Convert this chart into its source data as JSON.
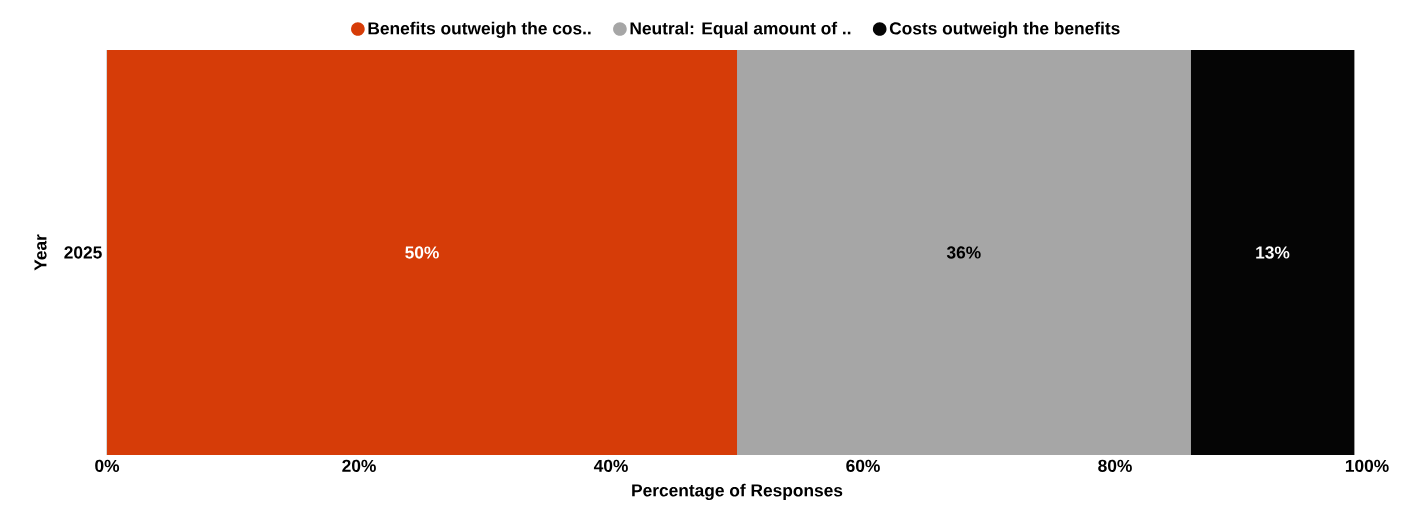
{
  "chart_data": {
    "type": "bar",
    "orientation": "horizontal",
    "stacked": true,
    "categories": [
      "2025"
    ],
    "series": [
      {
        "name": "Benefits outweigh the cos..",
        "color": "#d63c08",
        "values": [
          50
        ],
        "value_labels": [
          "50%"
        ]
      },
      {
        "name": "Neutral: Equal amount of ..",
        "color": "#a6a6a6",
        "values": [
          36
        ],
        "value_labels": [
          "36%"
        ]
      },
      {
        "name": "Costs outweigh the benefits",
        "color": "#050505",
        "values": [
          13
        ],
        "value_labels": [
          "13%"
        ]
      }
    ],
    "xlim": [
      0,
      100
    ],
    "xticks": [
      {
        "value": 0,
        "label": "0%"
      },
      {
        "value": 20,
        "label": "20%"
      },
      {
        "value": 40,
        "label": "40%"
      },
      {
        "value": 60,
        "label": "60%"
      },
      {
        "value": 80,
        "label": "80%"
      },
      {
        "value": 100,
        "label": "100%"
      }
    ],
    "xlabel": "Percentage of Responses",
    "ylabel": "Year",
    "legend": "top",
    "grid": false
  }
}
